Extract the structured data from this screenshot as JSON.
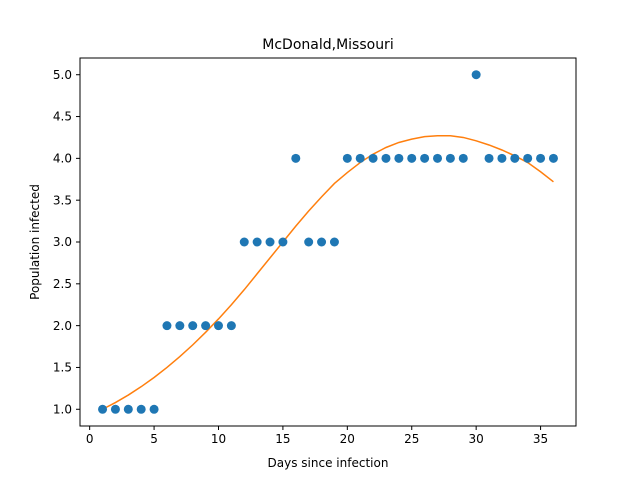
{
  "chart_data": {
    "type": "scatter",
    "title": "McDonald,Missouri",
    "xlabel": "Days since infection",
    "ylabel": "Population infected",
    "xlim": [
      -0.75,
      37.75
    ],
    "ylim": [
      0.8,
      5.2
    ],
    "xticks": [
      0,
      5,
      10,
      15,
      20,
      25,
      30,
      35
    ],
    "yticks": [
      1.0,
      1.5,
      2.0,
      2.5,
      3.0,
      3.5,
      4.0,
      4.5,
      5.0
    ],
    "grid": false,
    "legend": "none",
    "series": [
      {
        "kind": "scatter",
        "color": "#1f77b4",
        "x": [
          1,
          2,
          3,
          4,
          5,
          6,
          7,
          8,
          9,
          10,
          11,
          12,
          13,
          14,
          15,
          16,
          17,
          18,
          19,
          20,
          21,
          22,
          23,
          24,
          25,
          26,
          27,
          28,
          29,
          30,
          31,
          32,
          33,
          34,
          35,
          36
        ],
        "y": [
          1,
          1,
          1,
          1,
          1,
          2,
          2,
          2,
          2,
          2,
          2,
          3,
          3,
          3,
          3,
          4,
          3,
          3,
          3,
          4,
          4,
          4,
          4,
          4,
          4,
          4,
          4,
          4,
          4,
          5,
          4,
          4,
          4,
          4,
          4,
          4
        ]
      },
      {
        "kind": "line",
        "color": "#ff7f0e",
        "x": [
          1,
          2,
          3,
          4,
          5,
          6,
          7,
          8,
          9,
          10,
          11,
          12,
          13,
          14,
          15,
          16,
          17,
          18,
          19,
          20,
          21,
          22,
          23,
          24,
          25,
          26,
          27,
          28,
          29,
          30,
          31,
          32,
          33,
          34,
          35,
          36
        ],
        "y": [
          1.0,
          1.08,
          1.17,
          1.27,
          1.38,
          1.5,
          1.63,
          1.77,
          1.92,
          2.08,
          2.25,
          2.43,
          2.62,
          2.81,
          3.0,
          3.19,
          3.37,
          3.54,
          3.7,
          3.83,
          3.95,
          4.05,
          4.13,
          4.19,
          4.23,
          4.26,
          4.27,
          4.27,
          4.25,
          4.21,
          4.16,
          4.1,
          4.03,
          3.95,
          3.84,
          3.72
        ]
      }
    ]
  }
}
